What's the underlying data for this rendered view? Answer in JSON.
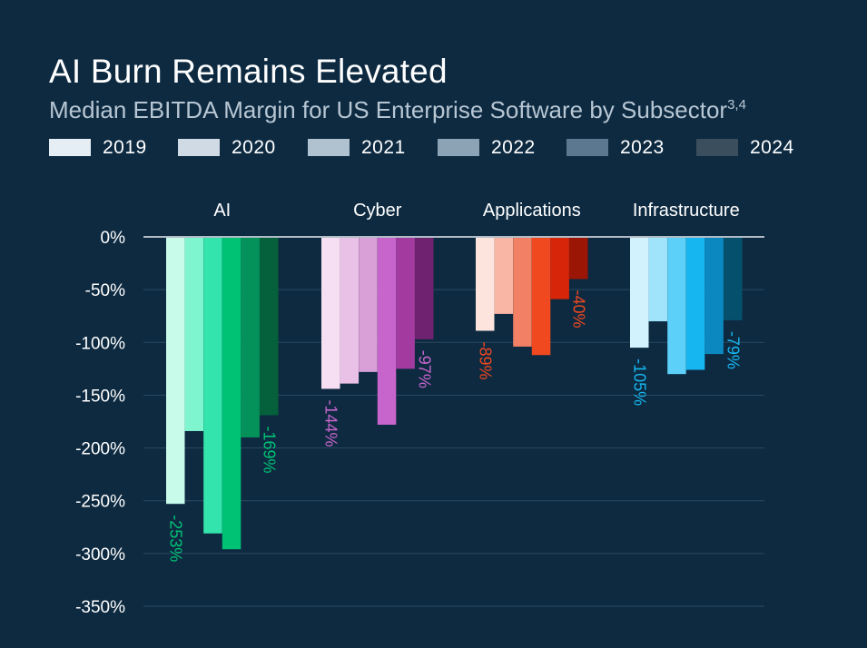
{
  "chart_data": {
    "type": "bar",
    "title": "AI Burn Remains Elevated",
    "subtitle": "Median EBITDA Margin for US Enterprise Software by Subsector",
    "subtitle_superscript": "3,4",
    "xlabel": "",
    "ylabel": "",
    "ylim": [
      -350,
      0
    ],
    "yticks": [
      0,
      -50,
      -100,
      -150,
      -200,
      -250,
      -300,
      -350
    ],
    "ytick_labels": [
      "0%",
      "-50%",
      "-100%",
      "-150%",
      "-200%",
      "-250%",
      "-300%",
      "-350%"
    ],
    "grid": true,
    "legend": {
      "position": "top",
      "entries": [
        "2019",
        "2020",
        "2021",
        "2022",
        "2023",
        "2024"
      ],
      "colors": [
        "#e6eef5",
        "#cfdae4",
        "#b0c1cf",
        "#8ca2b5",
        "#5c7890",
        "#3b4e5e"
      ]
    },
    "categories": [
      "AI",
      "Cyber",
      "Applications",
      "Infrastructure"
    ],
    "series": [
      {
        "name": "2019",
        "values": [
          -253,
          -144,
          -89,
          -105
        ]
      },
      {
        "name": "2020",
        "values": [
          -184,
          -139,
          -73,
          -80
        ]
      },
      {
        "name": "2021",
        "values": [
          -281,
          -128,
          -104,
          -130
        ]
      },
      {
        "name": "2022",
        "values": [
          -296,
          -178,
          -112,
          -126
        ]
      },
      {
        "name": "2023",
        "values": [
          -190,
          -125,
          -59,
          -111
        ]
      },
      {
        "name": "2024",
        "values": [
          -169,
          -97,
          -40,
          -79
        ]
      }
    ],
    "category_colors": {
      "AI": [
        "#c9fbea",
        "#7ff5cf",
        "#33e5ad",
        "#00c274",
        "#04925a",
        "#05603c"
      ],
      "Cyber": [
        "#f6def3",
        "#e9c1e7",
        "#d9a0d8",
        "#c865cc",
        "#a23aa0",
        "#6e2270"
      ],
      "Applications": [
        "#fde4dd",
        "#f9b6a4",
        "#f28065",
        "#f0481f",
        "#d7250a",
        "#9c1605"
      ],
      "Infrastructure": [
        "#d2f2fd",
        "#9fe4fb",
        "#5cd0f8",
        "#16b7f0",
        "#0b88bf",
        "#05506d"
      ]
    },
    "label_colors": {
      "AI": "#00c274",
      "Cyber": "#c865cc",
      "Applications": "#f0481f",
      "Infrastructure": "#16b7f0"
    },
    "annotations": [
      {
        "category": "AI",
        "series": "2019",
        "text": "-253%"
      },
      {
        "category": "AI",
        "series": "2024",
        "text": "-169%"
      },
      {
        "category": "Cyber",
        "series": "2019",
        "text": "-144%"
      },
      {
        "category": "Cyber",
        "series": "2024",
        "text": "-97%"
      },
      {
        "category": "Applications",
        "series": "2019",
        "text": "-89%"
      },
      {
        "category": "Applications",
        "series": "2024",
        "text": "-40%"
      },
      {
        "category": "Infrastructure",
        "series": "2019",
        "text": "-105%"
      },
      {
        "category": "Infrastructure",
        "series": "2024",
        "text": "-79%"
      }
    ]
  }
}
